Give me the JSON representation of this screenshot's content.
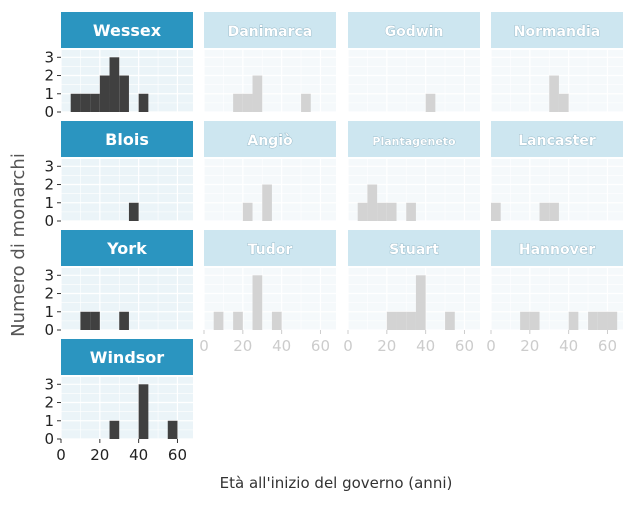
{
  "chart_data": {
    "type": "bar",
    "xlabel": "Età all'inizio del governo (anni)",
    "ylabel": "Numero di monarchi",
    "x_ticks": [
      0,
      20,
      40,
      60
    ],
    "y_ticks": [
      0,
      1,
      2,
      3
    ],
    "xlim": [
      0,
      68
    ],
    "ylim": [
      0,
      3.4
    ],
    "bin_width": 5,
    "colors": {
      "highlight_bar": "#404040",
      "muted_bar": "#d3d3d3",
      "highlight_strip": "#2b95c0",
      "muted_strip": "#cde6f0",
      "panel_bg_highlight": "#ebf4f8",
      "panel_bg_muted": "#f5f9fb",
      "tick_text_highlight": "#222222",
      "tick_text_muted": "#cccccc"
    },
    "facets": [
      {
        "name": "Wessex",
        "highlight": true,
        "bins": [
          [
            5,
            1
          ],
          [
            10,
            1
          ],
          [
            15,
            1
          ],
          [
            20,
            2
          ],
          [
            25,
            3
          ],
          [
            30,
            2
          ],
          [
            40,
            1
          ]
        ]
      },
      {
        "name": "Danimarca",
        "highlight": false,
        "bins": [
          [
            15,
            1
          ],
          [
            20,
            1
          ],
          [
            25,
            2
          ],
          [
            50,
            1
          ]
        ]
      },
      {
        "name": "Godwin",
        "highlight": false,
        "bins": [
          [
            40,
            1
          ]
        ]
      },
      {
        "name": "Normandia",
        "highlight": false,
        "bins": [
          [
            30,
            2
          ],
          [
            35,
            1
          ]
        ]
      },
      {
        "name": "Blois",
        "highlight": true,
        "bins": [
          [
            35,
            1
          ]
        ]
      },
      {
        "name": "Angiò",
        "highlight": false,
        "bins": [
          [
            20,
            1
          ],
          [
            30,
            2
          ]
        ]
      },
      {
        "name": "Plantageneto",
        "highlight": false,
        "bins": [
          [
            5,
            1
          ],
          [
            10,
            2
          ],
          [
            15,
            1
          ],
          [
            20,
            1
          ],
          [
            30,
            1
          ]
        ]
      },
      {
        "name": "Lancaster",
        "highlight": false,
        "bins": [
          [
            0,
            1
          ],
          [
            25,
            1
          ],
          [
            30,
            1
          ]
        ]
      },
      {
        "name": "York",
        "highlight": true,
        "bins": [
          [
            10,
            1
          ],
          [
            15,
            1
          ],
          [
            30,
            1
          ]
        ]
      },
      {
        "name": "Tudor",
        "highlight": false,
        "bins": [
          [
            5,
            1
          ],
          [
            15,
            1
          ],
          [
            25,
            3
          ],
          [
            35,
            1
          ]
        ]
      },
      {
        "name": "Stuart",
        "highlight": false,
        "bins": [
          [
            20,
            1
          ],
          [
            25,
            1
          ],
          [
            30,
            1
          ],
          [
            35,
            3
          ],
          [
            50,
            1
          ]
        ]
      },
      {
        "name": "Hannover",
        "highlight": false,
        "bins": [
          [
            15,
            1
          ],
          [
            20,
            1
          ],
          [
            40,
            1
          ],
          [
            50,
            1
          ],
          [
            55,
            1
          ],
          [
            60,
            1
          ]
        ]
      },
      {
        "name": "Windsor",
        "highlight": true,
        "bins": [
          [
            25,
            1
          ],
          [
            40,
            3
          ],
          [
            55,
            1
          ]
        ]
      }
    ]
  }
}
